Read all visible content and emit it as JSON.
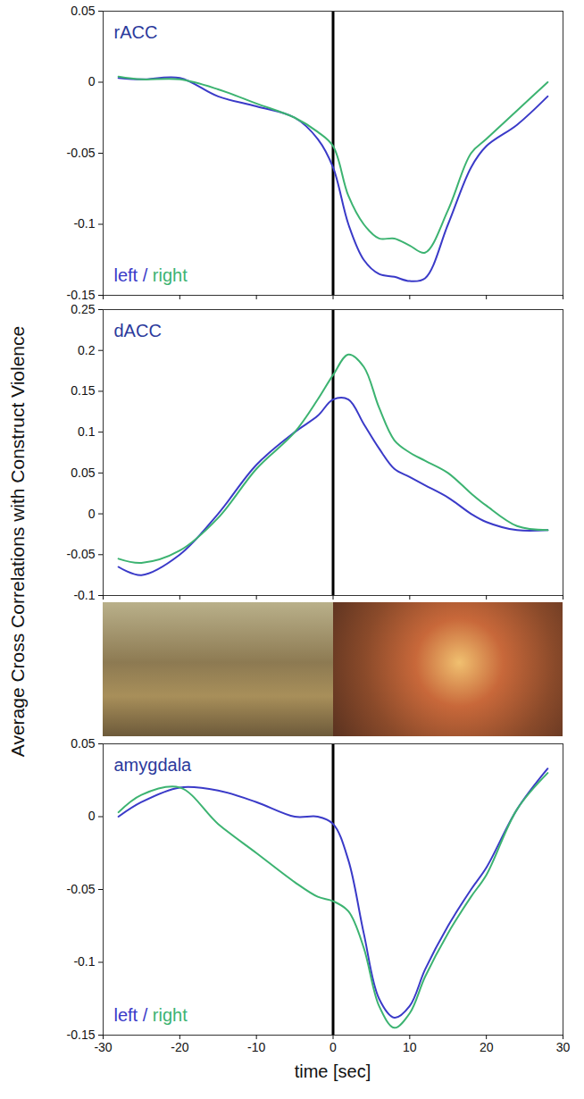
{
  "ylabel": "Average Cross Correlations with Construct Violence",
  "chart_data": [
    {
      "type": "line",
      "title": "rACC",
      "x": [
        -28,
        -25,
        -20,
        -15,
        -10,
        -5,
        -2,
        0,
        2,
        4,
        6,
        8,
        10,
        12,
        15,
        18,
        20,
        24,
        28
      ],
      "series": [
        {
          "name": "left",
          "color": "#3a3ac8",
          "values": [
            0.003,
            0.002,
            0.003,
            -0.01,
            -0.017,
            -0.025,
            -0.04,
            -0.06,
            -0.1,
            -0.125,
            -0.135,
            -0.137,
            -0.14,
            -0.138,
            -0.1,
            -0.06,
            -0.045,
            -0.03,
            -0.01
          ]
        },
        {
          "name": "right",
          "color": "#3cb371",
          "values": [
            0.004,
            0.002,
            0.002,
            -0.005,
            -0.015,
            -0.025,
            -0.035,
            -0.045,
            -0.08,
            -0.1,
            -0.11,
            -0.11,
            -0.115,
            -0.12,
            -0.09,
            -0.05,
            -0.04,
            -0.02,
            0
          ]
        }
      ],
      "xlim": [
        -30,
        30
      ],
      "xticks": [
        -30,
        -20,
        -10,
        0,
        10,
        20,
        30
      ],
      "ylim": [
        -0.15,
        0.05
      ],
      "yticks": [
        -0.15,
        -0.1,
        -0.05,
        0,
        0.05
      ],
      "legend": "bottom-left",
      "legend_separator": "/",
      "tick_labels": "y",
      "annotations": [
        {
          "type": "vline",
          "x": 0
        }
      ]
    },
    {
      "type": "line",
      "title": "dACC",
      "x": [
        -28,
        -25,
        -20,
        -15,
        -10,
        -5,
        -2,
        0,
        2,
        4,
        6,
        8,
        10,
        12,
        15,
        18,
        20,
        24,
        28
      ],
      "series": [
        {
          "name": "left",
          "color": "#3a3ac8",
          "values": [
            -0.065,
            -0.075,
            -0.05,
            0,
            0.06,
            0.1,
            0.12,
            0.14,
            0.14,
            0.11,
            0.08,
            0.055,
            0.045,
            0.035,
            0.02,
            0,
            -0.01,
            -0.02,
            -0.02
          ]
        },
        {
          "name": "right",
          "color": "#3cb371",
          "values": [
            -0.055,
            -0.06,
            -0.045,
            -0.005,
            0.055,
            0.1,
            0.14,
            0.17,
            0.195,
            0.18,
            0.13,
            0.09,
            0.075,
            0.065,
            0.05,
            0.025,
            0.01,
            -0.015,
            -0.02
          ]
        }
      ],
      "xlim": [
        -30,
        30
      ],
      "xticks": [
        -30,
        -20,
        -10,
        0,
        10,
        20,
        30
      ],
      "ylim": [
        -0.1,
        0.25
      ],
      "yticks": [
        -0.1,
        -0.05,
        0,
        0.05,
        0.1,
        0.15,
        0.2,
        0.25
      ],
      "tick_labels": "y",
      "annotations": [
        {
          "type": "vline",
          "x": 0
        }
      ]
    },
    {
      "type": "line",
      "title": "amygdala",
      "xlabel": "time [sec]",
      "x": [
        -28,
        -25,
        -20,
        -15,
        -10,
        -5,
        -2,
        0,
        2,
        4,
        6,
        8,
        10,
        12,
        15,
        18,
        20,
        24,
        28
      ],
      "series": [
        {
          "name": "left",
          "color": "#3a3ac8",
          "values": [
            0,
            0.01,
            0.02,
            0.018,
            0.01,
            0,
            0,
            -0.005,
            -0.03,
            -0.08,
            -0.125,
            -0.138,
            -0.13,
            -0.105,
            -0.075,
            -0.05,
            -0.035,
            0.005,
            0.033
          ]
        },
        {
          "name": "right",
          "color": "#3cb371",
          "values": [
            0.003,
            0.015,
            0.02,
            -0.005,
            -0.025,
            -0.045,
            -0.055,
            -0.058,
            -0.065,
            -0.09,
            -0.13,
            -0.145,
            -0.135,
            -0.11,
            -0.08,
            -0.055,
            -0.04,
            0.005,
            0.03
          ]
        }
      ],
      "xlim": [
        -30,
        30
      ],
      "xticks": [
        -30,
        -20,
        -10,
        0,
        10,
        20,
        30
      ],
      "ylim": [
        -0.15,
        0.05
      ],
      "yticks": [
        -0.15,
        -0.1,
        -0.05,
        0,
        0.05
      ],
      "legend": "bottom-left",
      "legend_separator": "/",
      "annotations": [
        {
          "type": "vline",
          "x": 0
        }
      ]
    }
  ]
}
